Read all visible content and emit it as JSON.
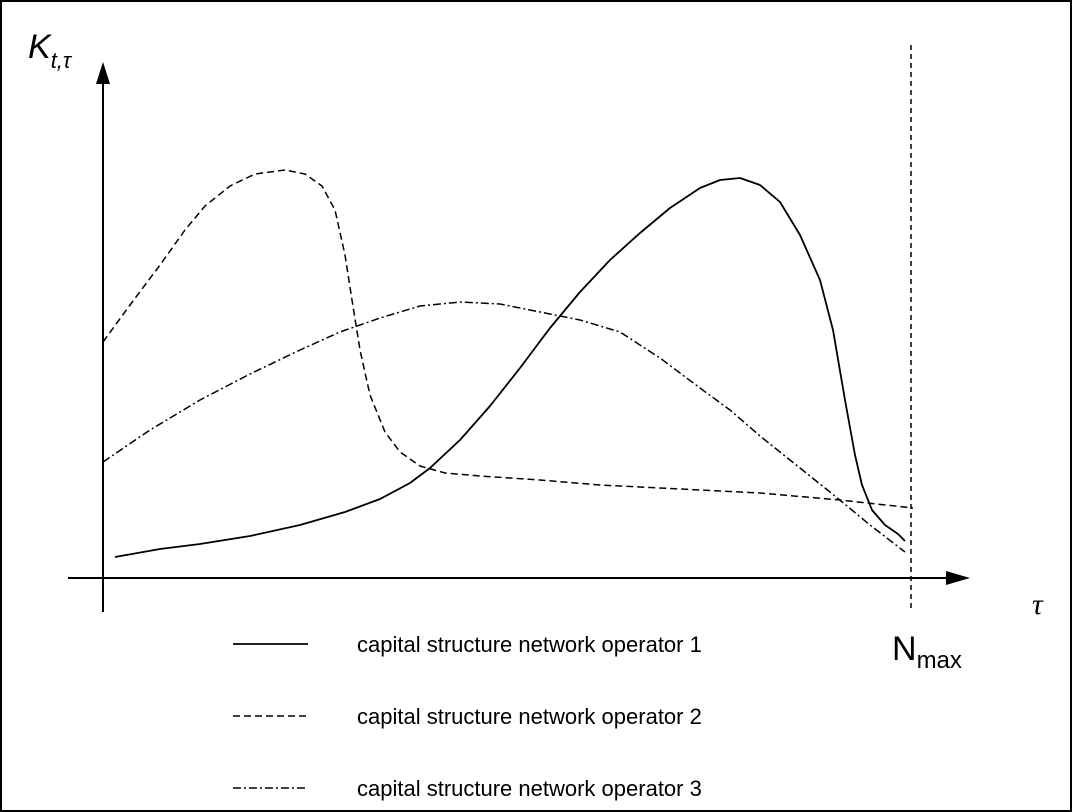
{
  "y_axis_label": {
    "main": "K",
    "sub": "t,τ"
  },
  "x_axis_label": "τ",
  "n_max": {
    "main": "N",
    "sub": "max"
  },
  "legend": [
    "capital structure network operator 1",
    "capital structure network operator 2",
    "capital structure network operator 3"
  ]
}
